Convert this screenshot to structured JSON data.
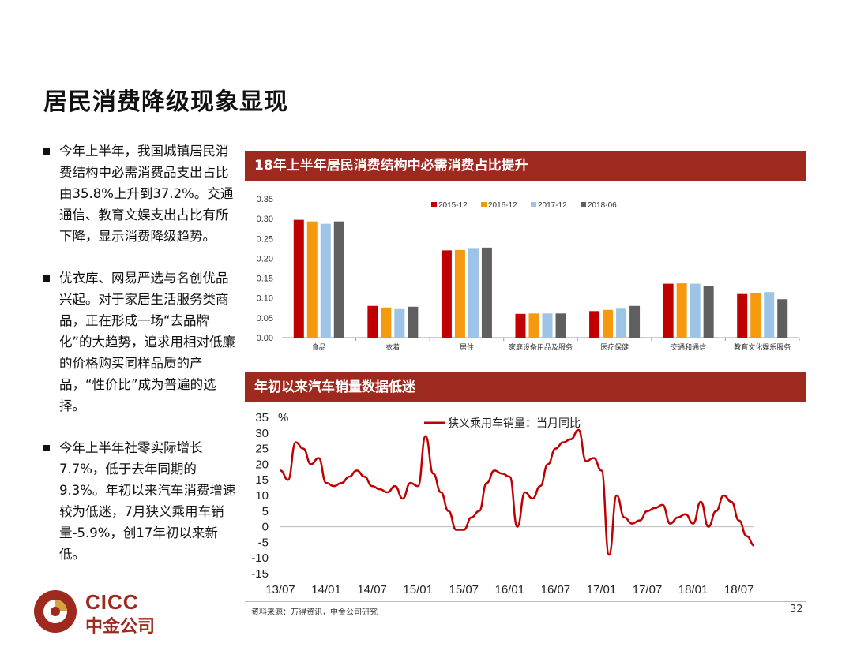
{
  "page": {
    "title": "居民消费降级现象显现",
    "bullets": [
      "今年上半年，我国城镇居民消费结构中必需消费品支出占比由35.8%上升到37.2%。交通通信、教育文娱支出占比有所下降，显示消费降级趋势。",
      "优衣库、网易严选与名创优品兴起。对于家居生活服务类商品，正在形成一场“去品牌化”的大趋势，追求用相对低廉的价格购买同样品质的产品，“性价比”成为普遍的选择。",
      "今年上半年社零实际增长7.7%，低于去年同期的9.3%。年初以来汽车消费增速较为低迷，7月狭义乘用车销量-5.9%，创17年初以来新低。"
    ],
    "banner1": "18年上半年居民消费结构中必需消费占比提升",
    "banner2": "年初以来汽车销量数据低迷",
    "source": "资料来源：万得资讯，中金公司研究",
    "page_number": "32",
    "logo": {
      "en": "CICC",
      "cn": "中金公司"
    }
  },
  "colors": {
    "brand": "#9e2a1f",
    "s2015": "#c00000",
    "s2016": "#f59a0f",
    "s2017": "#9dc3e6",
    "s2018": "#5f5f5f",
    "line": "#c00000"
  },
  "chart_data": [
    {
      "type": "bar",
      "title": "18年上半年居民消费结构中必需消费占比提升",
      "categories": [
        "食品",
        "衣着",
        "居住",
        "家庭设备用品及服务",
        "医疗保健",
        "交通和通信",
        "教育文化娱乐服务"
      ],
      "series": [
        {
          "name": "2015-12",
          "values": [
            0.297,
            0.08,
            0.22,
            0.06,
            0.067,
            0.136,
            0.11
          ]
        },
        {
          "name": "2016-12",
          "values": [
            0.293,
            0.076,
            0.221,
            0.061,
            0.07,
            0.137,
            0.113
          ]
        },
        {
          "name": "2017-12",
          "values": [
            0.287,
            0.072,
            0.226,
            0.061,
            0.073,
            0.136,
            0.115
          ]
        },
        {
          "name": "2018-06",
          "values": [
            0.293,
            0.078,
            0.227,
            0.061,
            0.08,
            0.131,
            0.097
          ]
        }
      ],
      "yticks": [
        "0.00",
        "0.05",
        "0.10",
        "0.15",
        "0.20",
        "0.25",
        "0.30",
        "0.35"
      ],
      "ylim": [
        0,
        0.35
      ],
      "legend": "top",
      "grid": false
    },
    {
      "type": "line",
      "title": "年初以来汽车销量数据低迷",
      "ylabel": "%",
      "ylim": [
        -15,
        35
      ],
      "yticks": [
        "35",
        "30",
        "25",
        "20",
        "15",
        "10",
        "5",
        "0",
        "-5",
        "-10",
        "-15"
      ],
      "xticks": [
        "13/07",
        "14/01",
        "14/07",
        "15/01",
        "15/07",
        "16/01",
        "16/07",
        "17/01",
        "17/07",
        "18/01",
        "18/07"
      ],
      "series": [
        {
          "name": "狭义乘用车销量：当月同比",
          "values": [
            18,
            15,
            27,
            25,
            20,
            22,
            14,
            13,
            14,
            16,
            18,
            16,
            13,
            12,
            11,
            13,
            9,
            14,
            13,
            29,
            17,
            11,
            5,
            -1,
            -1,
            3,
            5,
            14,
            18,
            17,
            16,
            0,
            11,
            9,
            13,
            20,
            25,
            27,
            28,
            31,
            21,
            22,
            18,
            -9,
            10,
            3,
            1,
            2,
            5,
            6,
            7,
            1,
            3,
            4,
            1,
            8,
            0,
            5,
            10,
            8,
            2,
            -3,
            -6
          ]
        }
      ],
      "legend": "top-center",
      "grid": false
    }
  ]
}
